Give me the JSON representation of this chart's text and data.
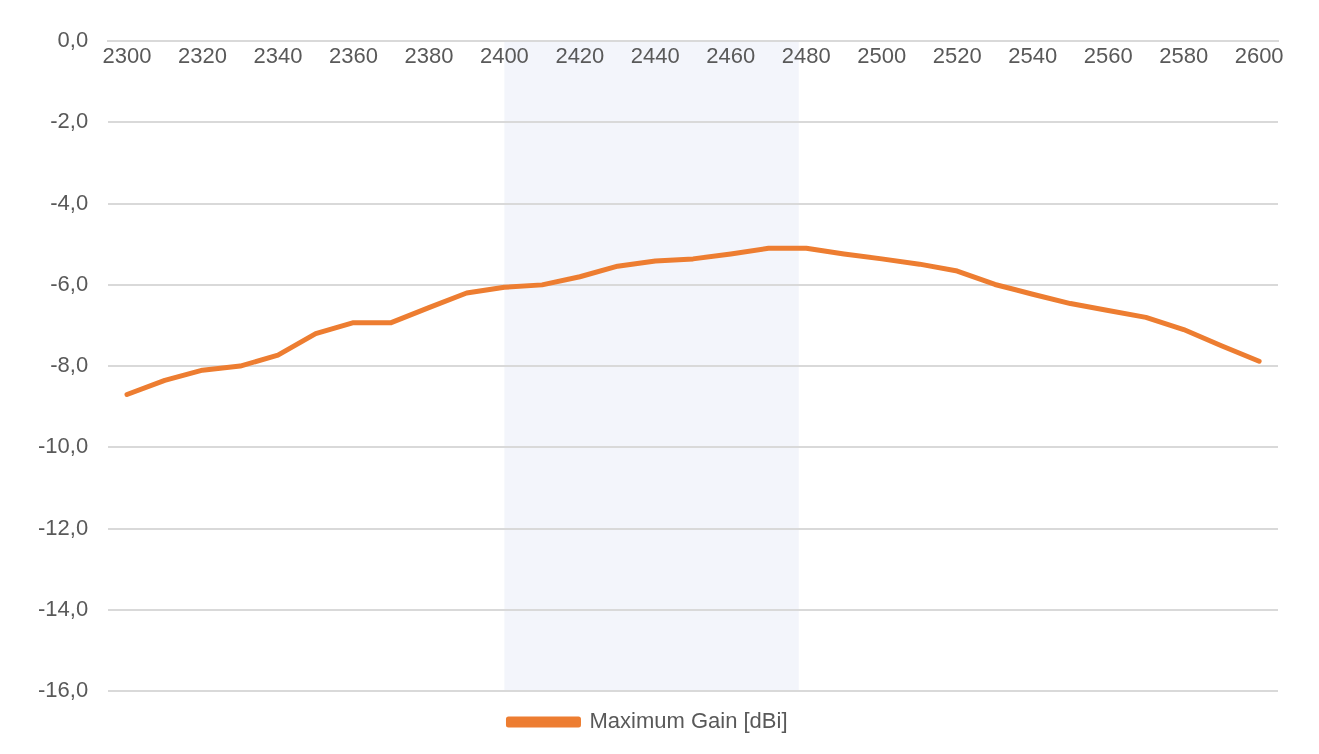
{
  "chart_data": {
    "type": "line",
    "x": [
      2300,
      2310,
      2320,
      2330,
      2340,
      2350,
      2360,
      2370,
      2380,
      2390,
      2400,
      2410,
      2420,
      2430,
      2440,
      2450,
      2460,
      2470,
      2480,
      2490,
      2500,
      2510,
      2520,
      2530,
      2540,
      2550,
      2560,
      2570,
      2580,
      2590,
      2600
    ],
    "series": [
      {
        "name": "Maximum Gain [dBi]",
        "color": "#ed7d31",
        "values": [
          -8.7,
          -8.35,
          -8.1,
          -8.0,
          -7.73,
          -7.2,
          -6.93,
          -6.93,
          -6.56,
          -6.2,
          -6.06,
          -6.0,
          -5.8,
          -5.54,
          -5.41,
          -5.36,
          -5.24,
          -5.1,
          -5.1,
          -5.24,
          -5.36,
          -5.49,
          -5.66,
          -5.99,
          -6.23,
          -6.46,
          -6.63,
          -6.8,
          -7.1,
          -7.5,
          -7.88
        ]
      }
    ],
    "xlim": [
      2295,
      2605
    ],
    "xticks": [
      2300,
      2320,
      2340,
      2360,
      2380,
      2400,
      2420,
      2440,
      2460,
      2480,
      2500,
      2520,
      2540,
      2560,
      2580,
      2600
    ],
    "ylim": [
      -16,
      0
    ],
    "yticks": [
      {
        "value": 0,
        "label": "0,0"
      },
      {
        "value": -2,
        "label": "-2,0"
      },
      {
        "value": -4,
        "label": "-4,0"
      },
      {
        "value": -6,
        "label": "-6,0"
      },
      {
        "value": -8,
        "label": "-8,0"
      },
      {
        "value": -10,
        "label": "-10,0"
      },
      {
        "value": -12,
        "label": "-12,0"
      },
      {
        "value": -14,
        "label": "-14,0"
      },
      {
        "value": -16,
        "label": "-16,0"
      }
    ],
    "bands": [
      {
        "axis": "x",
        "from": 2400,
        "to": 2478,
        "color": "#f3f5fb"
      }
    ],
    "grid": "y",
    "legend": "bottom",
    "marker": "none",
    "line_style": "solid"
  }
}
